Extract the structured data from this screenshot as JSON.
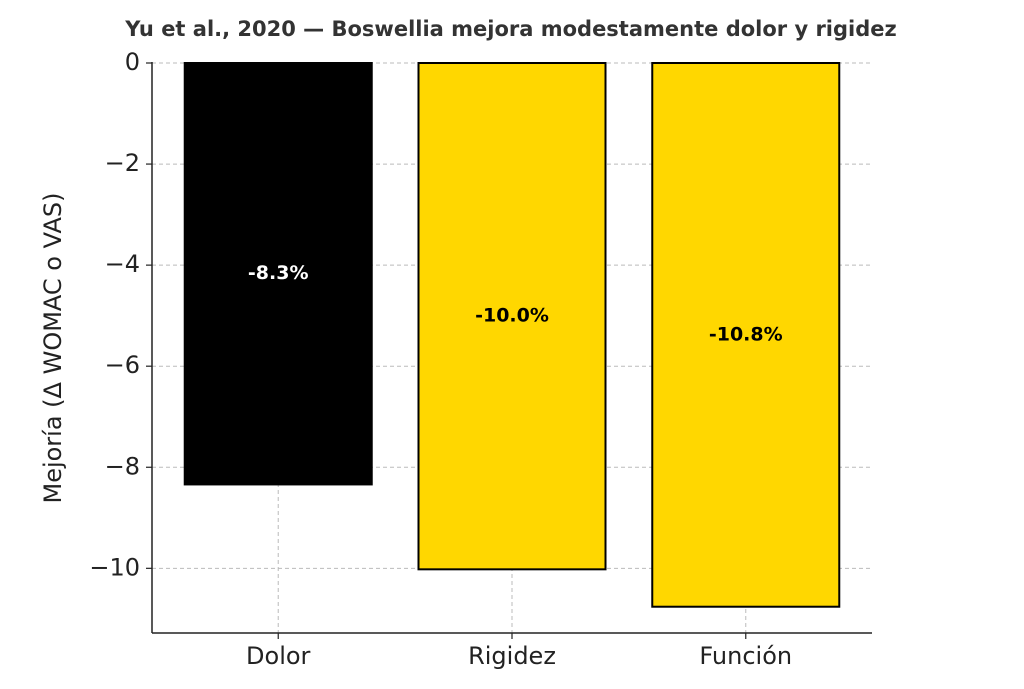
{
  "chart_data": {
    "type": "bar",
    "title": "Yu et al., 2020 — Boswellia mejora modestamente dolor y rigidez",
    "y_label": "Mejoría (Δ WOMAC o VAS)",
    "categories": [
      "Dolor",
      "Rigidez",
      "Función"
    ],
    "values": [
      -8.34,
      -10.02,
      -10.76
    ],
    "value_labels": [
      "-8.3%",
      "-10.0%",
      "-10.8%"
    ],
    "colors": [
      "#000000",
      "#FFD700",
      "#FFD700"
    ],
    "label_colors": [
      "#ffffff",
      "#000000",
      "#000000"
    ],
    "ylim": [
      -11.28,
      0
    ],
    "yticks": [
      0,
      {
        "value": -2,
        "label": "−2"
      },
      {
        "value": -4,
        "label": "−4"
      },
      {
        "value": -6,
        "label": "−6"
      },
      {
        "value": -8,
        "label": "−8"
      },
      {
        "value": -10,
        "label": "−10"
      }
    ],
    "grid": true
  }
}
